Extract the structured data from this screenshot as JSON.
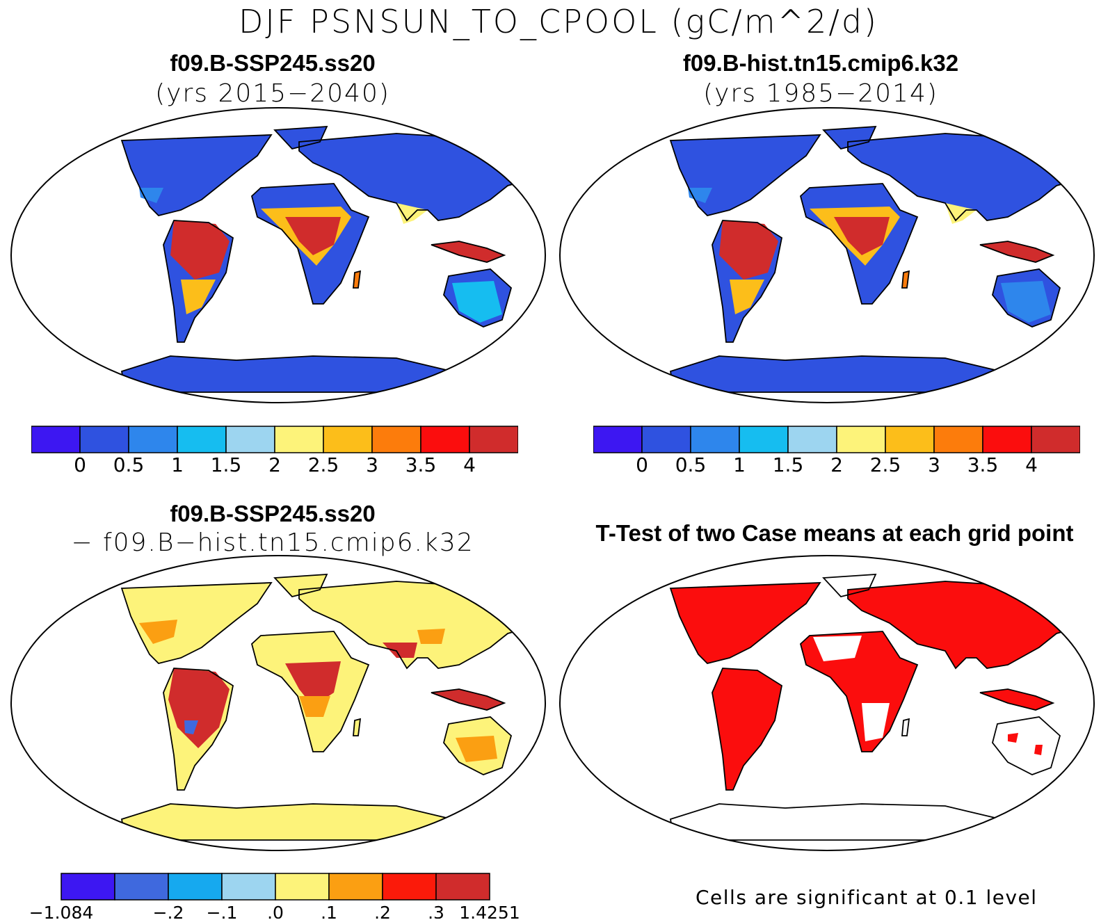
{
  "title": "DJF PSNSUN_TO_CPOOL (gC/m^2/d)",
  "panels": {
    "top_left": {
      "title": "f09.B-SSP245.ss20",
      "subtitle": "(yrs 2015−2040)"
    },
    "top_right": {
      "title": "f09.B-hist.tn15.cmip6.k32",
      "subtitle": "(yrs 1985−2014)"
    },
    "bottom_left": {
      "title": "f09.B-SSP245.ss20",
      "subtitle": "− f09.B−hist.tn15.cmip6.k32"
    },
    "bottom_right": {
      "title": "T-Test of two Case means at each grid point",
      "footnote": "Cells are significant at 0.1 level"
    }
  },
  "colorbars": {
    "cases": {
      "colors": [
        "#3d17f2",
        "#2f52e0",
        "#2e86ec",
        "#16bdf0",
        "#9dd5f0",
        "#fdf37a",
        "#fcbe1a",
        "#fc7c0c",
        "#fb0d0d",
        "#d02c2c"
      ],
      "labels": [
        "0",
        "0.5",
        "1",
        "1.5",
        "2",
        "2.5",
        "3",
        "3.5",
        "4"
      ]
    },
    "difference": {
      "colors": [
        "#3d17f2",
        "#3f69de",
        "#16a9ef",
        "#9dd5f0",
        "#fdf37a",
        "#fb9f12",
        "#fb1a0a",
        "#d02c2c"
      ],
      "labels": [
        "−1.084",
        "−.2",
        "−.1",
        ".0",
        ".1",
        ".2",
        ".3",
        "1.4251"
      ]
    }
  },
  "colors": {
    "land_low": "#2f52e0",
    "tropics_high": "#d02c2c",
    "diff_land": "#fdf37a",
    "significant": "#fb0d0d",
    "map_outline": "#000000"
  }
}
